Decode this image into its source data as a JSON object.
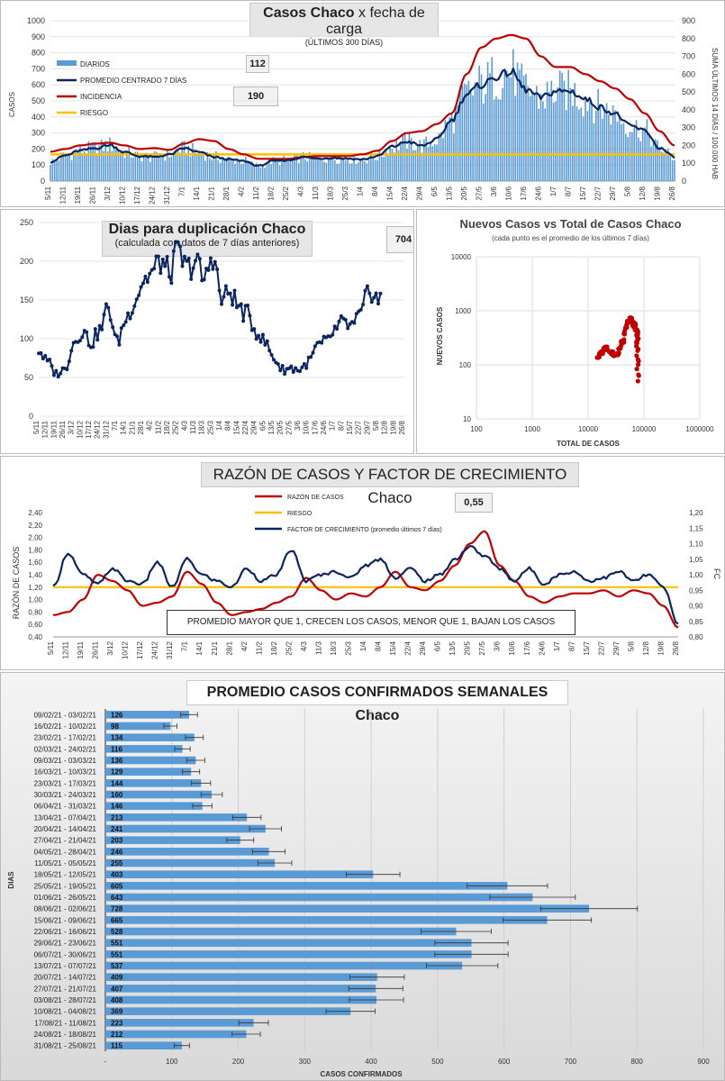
{
  "panel1": {
    "title_bold": "Casos Chaco",
    "title_rest": "x fecha de carga",
    "subtitle": "(ÚLTIMOS 300 DÍAS)",
    "ylabel_left": "CASOS",
    "ylabel_right": "SUMA ÚLTIMOS 14 DÍAS / 100.000 HAB",
    "legend": [
      {
        "label": "DIARIOS",
        "color": "#5b9bd5"
      },
      {
        "label": "PROMEDIO CENTRADO 7 DÍAS",
        "color": "#0b2560"
      },
      {
        "label": "INCIDENCIA",
        "color": "#c00000"
      },
      {
        "label": "RIESGO",
        "color": "#ffc000"
      }
    ],
    "value_promedio": "112",
    "value_incidencia": "190"
  },
  "panel2": {
    "title": "Dias para duplicación Chaco",
    "subtitle": "(calculada con datos de 7 días anteriores)",
    "value": "704"
  },
  "panel3": {
    "title": "Nuevos Casos vs Total de Casos Chaco",
    "subtitle": "(cada punto es el promedio de los últimos 7 días)",
    "xlabel": "TOTAL DE CASOS",
    "ylabel": "NUEVOS CASOS"
  },
  "panel4": {
    "title": "RAZÓN DE CASOS Y FACTOR DE CRECIMIENTO Chaco",
    "ylabel_left": "RAZÓN DE CASOS",
    "ylabel_right": "FC",
    "legend": [
      {
        "label": "RAZÓN DE CASOS",
        "color": "#c00000"
      },
      {
        "label": "RIESGO",
        "color": "#ffc000"
      },
      {
        "label": "FACTOR DE CRECIMIENTO (promedio últimos 7 días)",
        "color": "#0b2560"
      }
    ],
    "value": "0,55",
    "note": "PROMEDIO MAYOR QUE 1, CRECEN LOS CASOS, MENOR QUE 1, BAJAN LOS CASOS"
  },
  "panel5": {
    "title": "PROMEDIO CASOS CONFIRMADOS SEMANALES Chaco",
    "xlabel": "CASOS CONFIRMADOS",
    "ylabel": "DIAS"
  },
  "chart_data": [
    {
      "id": "casos",
      "type": "bar",
      "x": [
        "5/11",
        "12/11",
        "19/11",
        "26/11",
        "3/12",
        "10/12",
        "17/12",
        "24/12",
        "31/12",
        "7/1",
        "14/1",
        "21/1",
        "28/1",
        "4/2",
        "11/2",
        "18/2",
        "25/2",
        "4/3",
        "11/3",
        "18/3",
        "25/3",
        "1/4",
        "8/4",
        "15/4",
        "22/4",
        "29/4",
        "6/5",
        "13/5",
        "20/5",
        "27/5",
        "3/6",
        "10/6",
        "17/6",
        "24/6",
        "1/7",
        "8/7",
        "15/7",
        "22/7",
        "29/7",
        "5/8",
        "12/8",
        "19/8",
        "26/8"
      ],
      "ylim": [
        0,
        1000
      ],
      "ylim_right": [
        0,
        900
      ],
      "y_ticks": [
        0,
        100,
        200,
        300,
        400,
        500,
        600,
        700,
        800,
        900,
        1000
      ],
      "y_ticks_right": [
        0,
        100,
        200,
        300,
        400,
        500,
        600,
        700,
        800,
        900
      ],
      "series": [
        {
          "name": "PROMEDIO CENTRADO 7 DÍAS",
          "values": [
            120,
            160,
            190,
            205,
            225,
            180,
            155,
            150,
            165,
            205,
            180,
            150,
            135,
            125,
            95,
            125,
            130,
            150,
            140,
            145,
            140,
            135,
            155,
            215,
            245,
            220,
            260,
            380,
            540,
            600,
            650,
            680,
            570,
            520,
            560,
            560,
            510,
            460,
            420,
            345,
            315,
            205,
            150
          ]
        },
        {
          "name": "INCIDENCIA",
          "axis": "right",
          "values": [
            165,
            180,
            200,
            210,
            215,
            200,
            180,
            185,
            175,
            210,
            235,
            225,
            180,
            150,
            125,
            125,
            125,
            135,
            140,
            140,
            140,
            150,
            170,
            225,
            270,
            280,
            320,
            380,
            600,
            750,
            800,
            820,
            800,
            700,
            640,
            640,
            600,
            560,
            520,
            460,
            380,
            280,
            200
          ]
        },
        {
          "name": "RIESGO",
          "axis": "right",
          "constant": 150
        }
      ]
    },
    {
      "id": "duplicacion",
      "type": "line",
      "x": [
        "5/11",
        "12/11",
        "19/11",
        "26/11",
        "3/12",
        "10/12",
        "17/12",
        "24/12",
        "31/12",
        "7/1",
        "14/1",
        "21/1",
        "28/1",
        "4/2",
        "11/2",
        "18/2",
        "25/2",
        "4/3",
        "11/3",
        "18/3",
        "25/3",
        "1/4",
        "8/4",
        "15/4",
        "22/4",
        "29/4",
        "6/5",
        "13/5",
        "20/5",
        "27/5",
        "3/6",
        "10/6",
        "17/6",
        "24/6",
        "1/7",
        "8/7",
        "15/7",
        "22/7",
        "29/7",
        "5/8",
        "12/8",
        "19/8",
        "26/8"
      ],
      "ylim": [
        0,
        250
      ],
      "y_ticks": [
        0,
        50,
        100,
        150,
        200,
        250
      ],
      "series": [
        {
          "name": "Días para duplicación",
          "values": [
            85,
            70,
            55,
            60,
            95,
            110,
            95,
            110,
            140,
            95,
            125,
            150,
            175,
            185,
            200,
            185,
            210,
            190,
            200,
            175,
            210,
            150,
            160,
            140,
            130,
            110,
            95,
            75,
            60,
            62,
            60,
            70,
            90,
            95,
            110,
            120,
            115,
            130,
            165,
            150,
            160,
            220,
            250
          ]
        }
      ]
    },
    {
      "id": "nuevos_vs_total",
      "type": "scatter",
      "xscale": "log",
      "yscale": "log",
      "xlim": [
        100,
        1000000
      ],
      "ylim": [
        10,
        10000
      ],
      "x_ticks": [
        100,
        1000,
        10000,
        100000,
        1000000
      ],
      "y_ticks": [
        10,
        100,
        1000,
        10000
      ],
      "x": [
        15000,
        17000,
        19000,
        21000,
        23000,
        26000,
        29000,
        33000,
        37000,
        42000,
        47000,
        52000,
        57000,
        62000,
        66000,
        70000,
        73000,
        75000,
        76000,
        77000,
        77500,
        78000
      ],
      "y": [
        125,
        160,
        200,
        210,
        190,
        170,
        160,
        155,
        200,
        280,
        450,
        600,
        700,
        640,
        560,
        520,
        470,
        400,
        300,
        220,
        120,
        50
      ]
    },
    {
      "id": "razon_fc",
      "type": "line",
      "x": [
        "5/11",
        "12/11",
        "19/11",
        "26/11",
        "3/12",
        "10/12",
        "17/12",
        "24/12",
        "31/12",
        "7/1",
        "14/1",
        "21/1",
        "28/1",
        "4/2",
        "11/2",
        "18/2",
        "25/2",
        "4/3",
        "11/3",
        "18/3",
        "25/3",
        "1/4",
        "8/4",
        "15/4",
        "22/4",
        "29/4",
        "6/5",
        "13/5",
        "20/5",
        "27/5",
        "3/6",
        "10/6",
        "17/6",
        "24/6",
        "1/7",
        "8/7",
        "15/7",
        "22/7",
        "29/7",
        "5/8",
        "12/8",
        "19/8",
        "26/8"
      ],
      "ylim": [
        0.4,
        2.4
      ],
      "ylim_right": [
        0.8,
        1.2
      ],
      "y_ticks": [
        "0,40",
        "0,60",
        "0,80",
        "1,00",
        "1,20",
        "1,40",
        "1,60",
        "1,80",
        "2,00",
        "2,20",
        "2,40"
      ],
      "y_ticks_right": [
        "0,80",
        "0,85",
        "0,90",
        "0,95",
        "1,00",
        "1,05",
        "1,10",
        "1,15",
        "1,20"
      ],
      "series": [
        {
          "name": "RAZÓN DE CASOS",
          "values": [
            0.75,
            0.8,
            1.0,
            1.4,
            1.3,
            1.15,
            0.9,
            0.95,
            1.05,
            1.45,
            1.25,
            0.95,
            0.75,
            0.8,
            0.85,
            0.95,
            1.05,
            1.35,
            1.15,
            1.0,
            1.1,
            1.05,
            1.2,
            1.45,
            1.2,
            1.15,
            1.3,
            1.55,
            1.9,
            2.1,
            1.55,
            1.3,
            1.05,
            0.95,
            1.05,
            1.1,
            1.1,
            1.15,
            1.05,
            1.15,
            1.1,
            0.9,
            0.55
          ]
        },
        {
          "name": "RIESGO",
          "constant": 1.2
        },
        {
          "name": "FACTOR DE CRECIMIENTO (promedio últimos 7 días)",
          "axis": "right",
          "values": [
            0.96,
            1.07,
            1.0,
            0.97,
            1.02,
            0.98,
            0.97,
            1.04,
            0.96,
            1.05,
            1.0,
            0.98,
            0.96,
            1.02,
            0.98,
            1.0,
            1.08,
            0.98,
            1.0,
            1.01,
            0.99,
            1.03,
            1.05,
            0.99,
            1.02,
            0.98,
            1.0,
            1.05,
            1.09,
            1.06,
            1.02,
            0.98,
            1.02,
            0.97,
            1.0,
            1.01,
            0.98,
            0.99,
            1.01,
            0.98,
            1.0,
            0.96,
            0.84
          ]
        }
      ]
    },
    {
      "id": "semanales",
      "type": "bar",
      "orientation": "horizontal",
      "xlim": [
        0,
        900
      ],
      "x_ticks": [
        "-",
        "100",
        "200",
        "300",
        "400",
        "500",
        "600",
        "700",
        "800",
        "900"
      ],
      "categories": [
        "09/02/21 - 03/02/21",
        "16/02/21 - 10/02/21",
        "23/02/21 - 17/02/21",
        "02/03/21 - 24/02/21",
        "09/03/21 - 03/03/21",
        "16/03/21 - 10/03/21",
        "23/03/21 - 17/03/21",
        "30/03/21 - 24/03/21",
        "06/04/21 - 31/03/21",
        "13/04/21 - 07/04/21",
        "20/04/21 - 14/04/21",
        "27/04/21 - 21/04/21",
        "04/05/21 - 28/04/21",
        "11/05/21 - 05/05/21",
        "18/05/21 - 12/05/21",
        "25/05/21 - 19/05/21",
        "01/06/21 - 26/05/21",
        "08/06/21 - 02/06/21",
        "15/06/21 - 09/06/21",
        "22/06/21 - 16/06/21",
        "29/06/21 - 23/06/21",
        "06/07/21 - 30/06/21",
        "13/07/21 - 07/07/21",
        "20/07/21 - 14/07/21",
        "27/07/21 - 21/07/21",
        "03/08/21 - 28/07/21",
        "10/08/21 - 04/08/21",
        "17/08/21 - 11/08/21",
        "24/08/21 - 18/08/21",
        "31/08/21 - 25/08/21"
      ],
      "values": [
        126,
        98,
        134,
        116,
        136,
        129,
        144,
        160,
        146,
        213,
        241,
        203,
        246,
        255,
        403,
        605,
        643,
        728,
        665,
        528,
        551,
        551,
        537,
        409,
        407,
        408,
        369,
        223,
        212,
        115
      ],
      "error_frac": 0.1
    }
  ]
}
